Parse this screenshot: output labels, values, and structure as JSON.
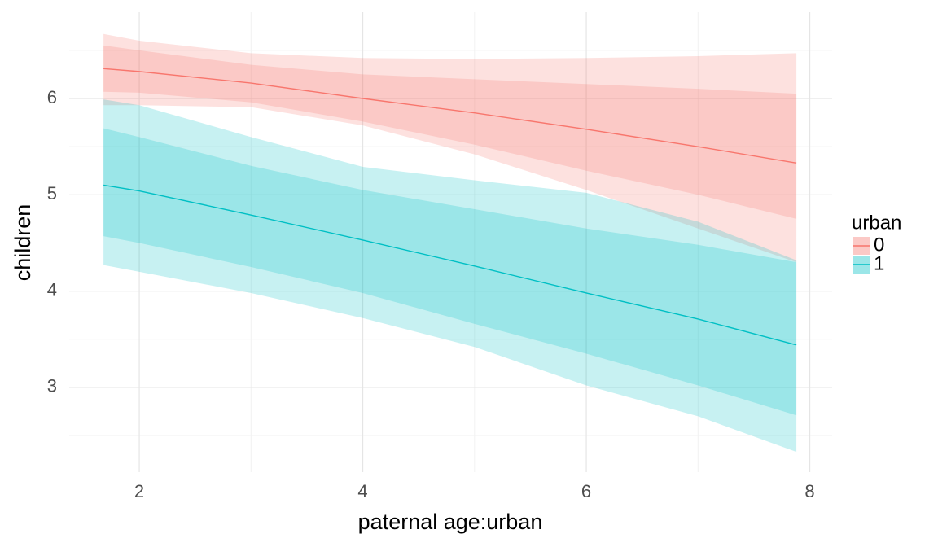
{
  "chart_data": {
    "type": "line",
    "x_label": "paternal age:urban",
    "y_label": "children",
    "legend_title": "urban",
    "legend_position": "right",
    "x": [
      1.68,
      2,
      3,
      4,
      5,
      6,
      7,
      7.88
    ],
    "xlim": [
      1.373,
      8.2
    ],
    "xticks": [
      2,
      4,
      6,
      8
    ],
    "ylim": [
      2.12,
      6.896
    ],
    "yticks": [
      3,
      4,
      5,
      6
    ],
    "grid": true,
    "band_opacity": 0.22,
    "series": [
      {
        "name": "0",
        "color": "#F8766D",
        "values": [
          6.31,
          6.28,
          6.16,
          6.0,
          5.85,
          5.68,
          5.5,
          5.33
        ],
        "bands": [
          {
            "lower": [
              5.93,
              5.93,
              5.91,
              5.72,
              5.42,
              5.05,
              4.65,
              4.3
            ],
            "upper": [
              6.67,
              6.6,
              6.47,
              6.42,
              6.41,
              6.42,
              6.44,
              6.47
            ]
          },
          {
            "lower": [
              6.07,
              6.06,
              5.96,
              5.76,
              5.52,
              5.25,
              5.0,
              4.75
            ],
            "upper": [
              6.55,
              6.5,
              6.35,
              6.25,
              6.2,
              6.15,
              6.1,
              6.05
            ]
          }
        ]
      },
      {
        "name": "1",
        "color": "#00BFC4",
        "values": [
          5.1,
          5.04,
          4.79,
          4.53,
          4.26,
          3.98,
          3.71,
          3.44
        ],
        "bands": [
          {
            "lower": [
              4.27,
              4.2,
              3.98,
              3.72,
              3.42,
              3.02,
              2.7,
              2.33
            ],
            "upper": [
              5.99,
              5.93,
              5.6,
              5.29,
              5.15,
              5.02,
              4.72,
              4.32
            ]
          },
          {
            "lower": [
              4.57,
              4.5,
              4.25,
              3.98,
              3.66,
              3.35,
              3.02,
              2.71
            ],
            "upper": [
              5.69,
              5.6,
              5.3,
              5.05,
              4.85,
              4.65,
              4.48,
              4.3
            ]
          }
        ]
      }
    ]
  }
}
